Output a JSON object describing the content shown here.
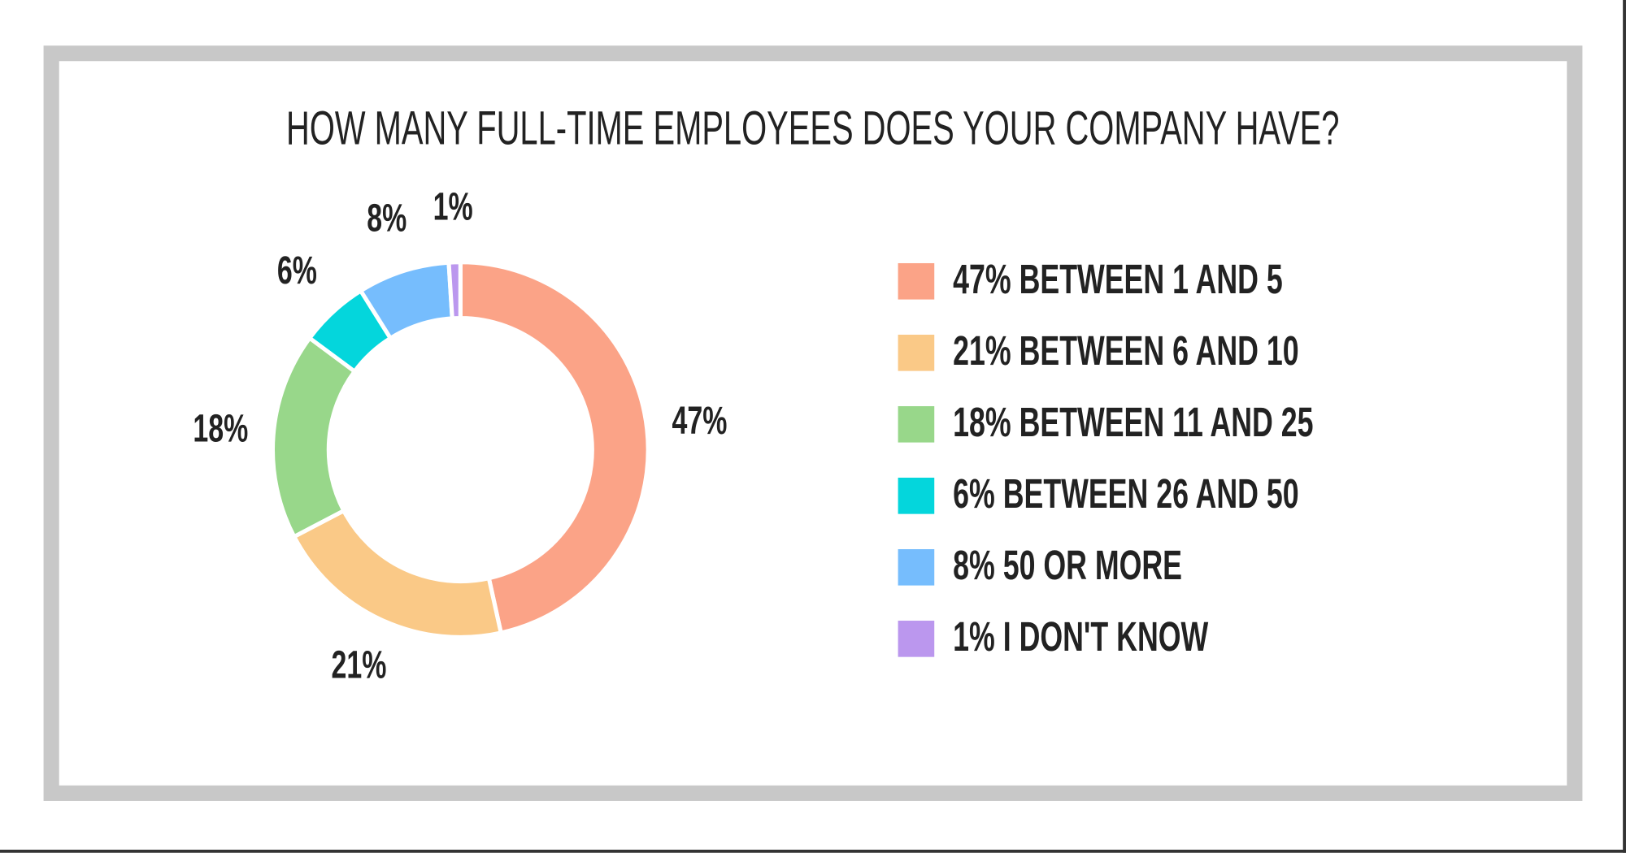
{
  "chart_data": {
    "type": "pie",
    "title": "HOW MANY FULL-TIME EMPLOYEES DOES YOUR COMPANY HAVE?",
    "donut": true,
    "legend_position": "right",
    "slices": [
      {
        "label": "47%",
        "value": 47,
        "legend": "47% BETWEEN 1 AND 5",
        "color": "#fba387"
      },
      {
        "label": "21%",
        "value": 21,
        "legend": "21% BETWEEN 6 AND 10",
        "color": "#fac987"
      },
      {
        "label": "18%",
        "value": 18,
        "legend": "18% BETWEEN 11 AND 25",
        "color": "#98d78a"
      },
      {
        "label": "6%",
        "value": 6,
        "legend": "6% BETWEEN 26 AND 50",
        "color": "#04d6dc"
      },
      {
        "label": "8%",
        "value": 8,
        "legend": "8% 50 OR MORE",
        "color": "#76bdfd"
      },
      {
        "label": "1%",
        "value": 1,
        "legend": "1% I DON'T KNOW",
        "color": "#bb97ee"
      }
    ]
  }
}
